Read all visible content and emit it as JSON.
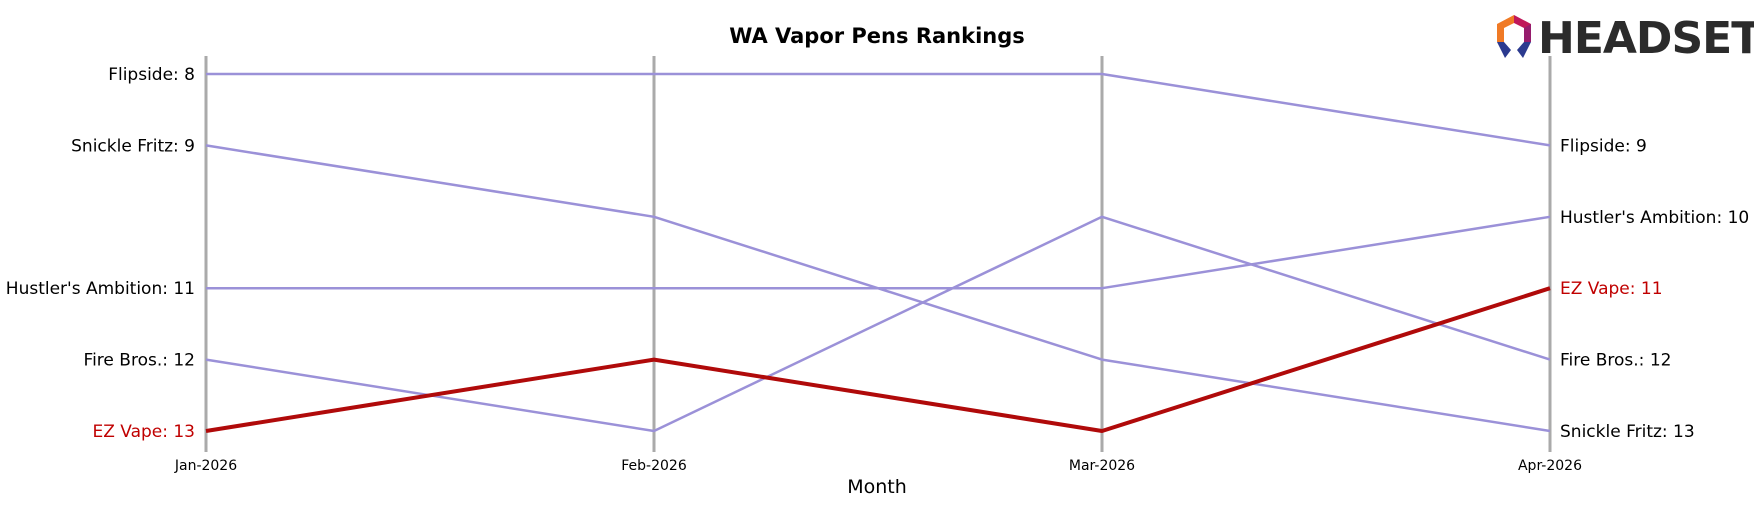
{
  "chart_data": {
    "type": "line",
    "title": "WA Vapor Pens Rankings",
    "xlabel": "Month",
    "ylabel": "",
    "x": [
      "Jan-2026",
      "Feb-2026",
      "Mar-2026",
      "Apr-2026"
    ],
    "ylim": [
      13,
      8
    ],
    "y_inverted": true,
    "grid": false,
    "highlight_series": "EZ Vape",
    "colors": {
      "default_line": "#9b91d8",
      "highlight_line": "#b00a0a",
      "axis_line": "#aaaaaa",
      "highlight_text": "#c00000",
      "default_text": "#000000"
    },
    "series": [
      {
        "name": "Flipside",
        "values": [
          8,
          8,
          8,
          9
        ]
      },
      {
        "name": "Snickle Fritz",
        "values": [
          9,
          10,
          12,
          13
        ]
      },
      {
        "name": "Hustler's Ambition",
        "values": [
          11,
          11,
          11,
          10
        ]
      },
      {
        "name": "Fire Bros.",
        "values": [
          12,
          13,
          10,
          12
        ]
      },
      {
        "name": "EZ Vape",
        "values": [
          13,
          12,
          13,
          11
        ]
      }
    ],
    "start_labels": [
      "Flipside: 8",
      "Snickle Fritz: 9",
      "Hustler's Ambition: 11",
      "Fire Bros.: 12",
      "EZ Vape: 13"
    ],
    "end_labels": [
      "Flipside: 9",
      "Hustler's Ambition: 10",
      "EZ Vape: 11",
      "Fire Bros.: 12",
      "Snickle Fritz: 13"
    ]
  },
  "logo": {
    "text": "HEADSET",
    "icon": "headset-logo-icon"
  }
}
